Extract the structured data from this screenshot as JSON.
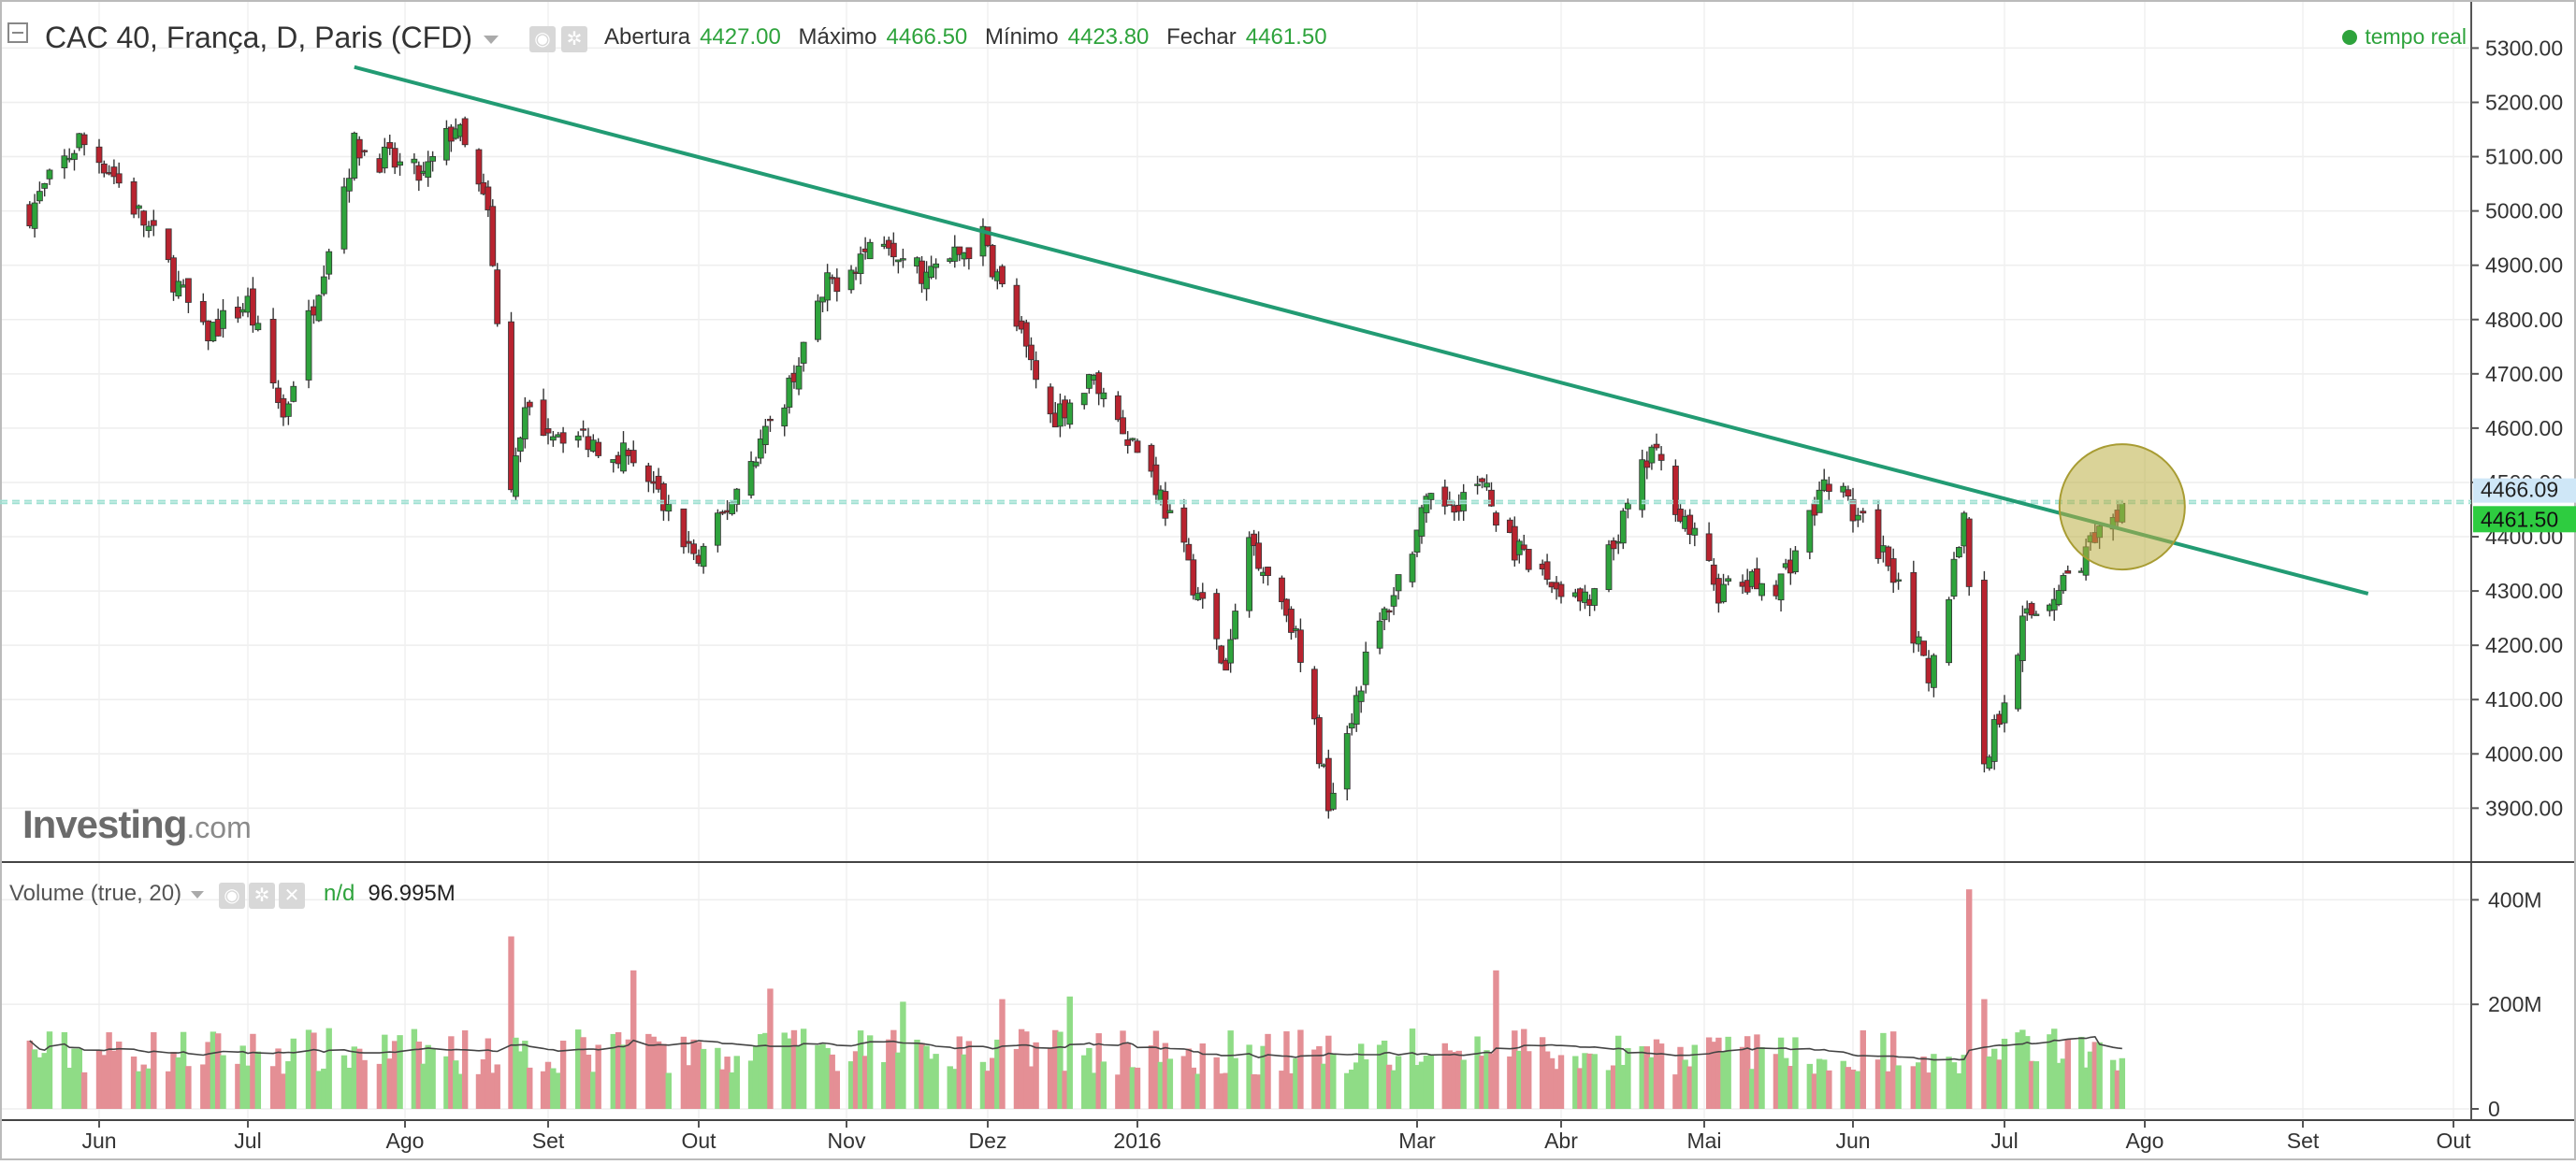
{
  "header": {
    "title": "CAC 40, França, D, Paris (CFD)",
    "open_label": "Abertura",
    "open_value": "4427.00",
    "high_label": "Máximo",
    "high_value": "4466.50",
    "low_label": "Mínimo",
    "low_value": "4423.80",
    "close_label": "Fechar",
    "close_value": "4461.50",
    "realtime": "tempo real"
  },
  "logo": {
    "main": "Investing",
    "suffix": ".com"
  },
  "volume_panel": {
    "label": "Volume (true, 20)",
    "nd": "n/d",
    "value": "96.995M"
  },
  "colors": {
    "up": "#2ea33c",
    "down": "#b8232f",
    "up_volume": "#8fdc86",
    "down_volume": "#e48f95",
    "trendline": "#229b73",
    "highlight": "#bcae44",
    "price_tag": "#2ecc40"
  },
  "chart_data": [
    {
      "type": "candlestick",
      "title": "CAC 40, França, D, Paris (CFD)",
      "x_ticks": [
        "Jun",
        "Jul",
        "Ago",
        "Set",
        "Out",
        "Nov",
        "Dez",
        "2016",
        "Mar",
        "Abr",
        "Mai",
        "Jun",
        "Jul",
        "Ago",
        "Set",
        "Out"
      ],
      "y_ticks": [
        "5300.00",
        "5200.00",
        "5100.00",
        "5000.00",
        "4900.00",
        "4800.00",
        "4700.00",
        "4600.00",
        "4500.00",
        "4400.00",
        "4300.00",
        "4200.00",
        "4100.00",
        "4000.00",
        "3900.00"
      ],
      "ylim": [
        3830,
        5330
      ],
      "price_labels": {
        "reference": "4466.09",
        "current": "4461.50"
      },
      "trendline": {
        "start": {
          "date": "2015-07-22",
          "value": 5265
        },
        "end": {
          "date": "2016-09-14",
          "value": 4295
        }
      },
      "highlight": {
        "date": "2016-07-27",
        "value": 4455
      },
      "anchors": [
        {
          "date": "2015-05-18",
          "value": 5000
        },
        {
          "date": "2015-05-28",
          "value": 5130
        },
        {
          "date": "2015-06-03",
          "value": 5080
        },
        {
          "date": "2015-06-12",
          "value": 4950
        },
        {
          "date": "2015-06-22",
          "value": 4770
        },
        {
          "date": "2015-07-01",
          "value": 4830
        },
        {
          "date": "2015-07-08",
          "value": 4620
        },
        {
          "date": "2015-07-22",
          "value": 5120
        },
        {
          "date": "2015-08-05",
          "value": 5060
        },
        {
          "date": "2015-08-12",
          "value": 5160
        },
        {
          "date": "2015-08-19",
          "value": 4990
        },
        {
          "date": "2015-08-24",
          "value": 4480
        },
        {
          "date": "2015-08-27",
          "value": 4620
        },
        {
          "date": "2015-09-18",
          "value": 4550
        },
        {
          "date": "2015-10-01",
          "value": 4350
        },
        {
          "date": "2015-10-20",
          "value": 4680
        },
        {
          "date": "2015-10-28",
          "value": 4860
        },
        {
          "date": "2015-11-09",
          "value": 4960
        },
        {
          "date": "2015-11-18",
          "value": 4880
        },
        {
          "date": "2015-11-30",
          "value": 4950
        },
        {
          "date": "2015-12-14",
          "value": 4620
        },
        {
          "date": "2015-12-23",
          "value": 4690
        },
        {
          "date": "2016-01-04",
          "value": 4520
        },
        {
          "date": "2016-01-13",
          "value": 4320
        },
        {
          "date": "2016-01-20",
          "value": 4150
        },
        {
          "date": "2016-01-25",
          "value": 4400
        },
        {
          "date": "2016-02-03",
          "value": 4250
        },
        {
          "date": "2016-02-11",
          "value": 3920
        },
        {
          "date": "2016-02-19",
          "value": 4170
        },
        {
          "date": "2016-03-03",
          "value": 4450
        },
        {
          "date": "2016-03-15",
          "value": 4490
        },
        {
          "date": "2016-03-24",
          "value": 4350
        },
        {
          "date": "2016-04-07",
          "value": 4270
        },
        {
          "date": "2016-04-20",
          "value": 4560
        },
        {
          "date": "2016-05-04",
          "value": 4300
        },
        {
          "date": "2016-05-17",
          "value": 4320
        },
        {
          "date": "2016-05-27",
          "value": 4510
        },
        {
          "date": "2016-06-10",
          "value": 4330
        },
        {
          "date": "2016-06-16",
          "value": 4120
        },
        {
          "date": "2016-06-23",
          "value": 4440
        },
        {
          "date": "2016-06-27",
          "value": 3980
        },
        {
          "date": "2016-07-05",
          "value": 4240
        },
        {
          "date": "2016-07-12",
          "value": 4300
        },
        {
          "date": "2016-07-20",
          "value": 4380
        },
        {
          "date": "2016-07-26",
          "value": 4420
        },
        {
          "date": "2016-07-27",
          "value": 4461.5
        }
      ]
    },
    {
      "type": "bar",
      "title": "Volume (true, 20)",
      "y_ticks": [
        "400M",
        "200M",
        "0"
      ],
      "ylim": [
        0,
        440
      ],
      "baseline_millions": 110,
      "spikes": [
        {
          "date": "2015-08-24",
          "value": 330
        },
        {
          "date": "2015-09-18",
          "value": 265
        },
        {
          "date": "2015-10-16",
          "value": 230
        },
        {
          "date": "2015-11-13",
          "value": 205
        },
        {
          "date": "2015-12-04",
          "value": 210
        },
        {
          "date": "2015-12-18",
          "value": 215
        },
        {
          "date": "2016-03-18",
          "value": 265
        },
        {
          "date": "2016-06-24",
          "value": 420
        },
        {
          "date": "2016-06-27",
          "value": 210
        }
      ],
      "moving_average": "20"
    }
  ]
}
